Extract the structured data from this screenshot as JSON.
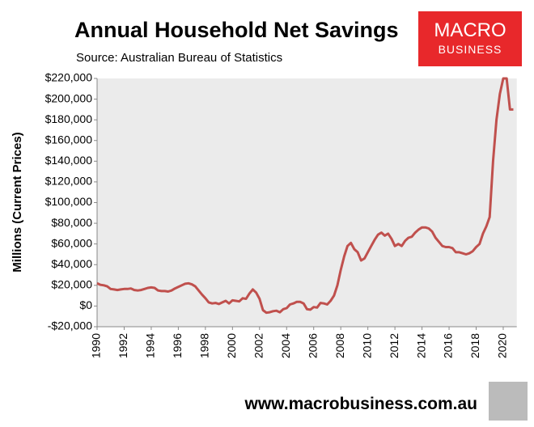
{
  "chart_data": {
    "type": "line",
    "title": "Annual Household Net Savings",
    "subtitle": "Source: Australian Bureau of Statistics",
    "y_label": "Millions (Current Prices)",
    "logo_top": "MACRO",
    "logo_bottom": "BUSINESS",
    "footer": "www.macrobusiness.com.au",
    "xlim": [
      1990,
      2021
    ],
    "xticks": [
      1990,
      1992,
      1994,
      1996,
      1998,
      2000,
      2002,
      2004,
      2006,
      2008,
      2010,
      2012,
      2014,
      2016,
      2018,
      2020
    ],
    "ylim": [
      -20000,
      220000
    ],
    "yticks": [
      {
        "value": -20000,
        "label": "-$20,000"
      },
      {
        "value": 0,
        "label": "$0"
      },
      {
        "value": 20000,
        "label": "$20,000"
      },
      {
        "value": 40000,
        "label": "$40,000"
      },
      {
        "value": 60000,
        "label": "$60,000"
      },
      {
        "value": 80000,
        "label": "$80,000"
      },
      {
        "value": 100000,
        "label": "$100,000"
      },
      {
        "value": 120000,
        "label": "$120,000"
      },
      {
        "value": 140000,
        "label": "$140,000"
      },
      {
        "value": 160000,
        "label": "$160,000"
      },
      {
        "value": 180000,
        "label": "$180,000"
      },
      {
        "value": 200000,
        "label": "$200,000"
      },
      {
        "value": 220000,
        "label": "$220,000"
      }
    ],
    "grid": false,
    "series": [
      {
        "name": "Household Net Savings",
        "color": "#c0504d",
        "x": [
          1990,
          1990.25,
          1990.5,
          1990.75,
          1991,
          1991.25,
          1991.5,
          1991.75,
          1992,
          1992.25,
          1992.5,
          1992.75,
          1993,
          1993.25,
          1993.5,
          1993.75,
          1994,
          1994.25,
          1994.5,
          1994.75,
          1995,
          1995.25,
          1995.5,
          1995.75,
          1996,
          1996.25,
          1996.5,
          1996.75,
          1997,
          1997.25,
          1997.5,
          1997.75,
          1998,
          1998.25,
          1998.5,
          1998.75,
          1999,
          1999.25,
          1999.5,
          1999.75,
          2000,
          2000.25,
          2000.5,
          2000.75,
          2001,
          2001.25,
          2001.5,
          2001.75,
          2002,
          2002.25,
          2002.5,
          2002.75,
          2003,
          2003.25,
          2003.5,
          2003.75,
          2004,
          2004.25,
          2004.5,
          2004.75,
          2005,
          2005.25,
          2005.5,
          2005.75,
          2006,
          2006.25,
          2006.5,
          2006.75,
          2007,
          2007.25,
          2007.5,
          2007.75,
          2008,
          2008.25,
          2008.5,
          2008.75,
          2009,
          2009.25,
          2009.5,
          2009.75,
          2010,
          2010.25,
          2010.5,
          2010.75,
          2011,
          2011.25,
          2011.5,
          2011.75,
          2012,
          2012.25,
          2012.5,
          2012.75,
          2013,
          2013.25,
          2013.5,
          2013.75,
          2014,
          2014.25,
          2014.5,
          2014.75,
          2015,
          2015.25,
          2015.5,
          2015.75,
          2016,
          2016.25,
          2016.5,
          2016.75,
          2017,
          2017.25,
          2017.5,
          2017.75,
          2018,
          2018.25,
          2018.5,
          2018.75,
          2019,
          2019.25,
          2019.5,
          2019.75,
          2020,
          2020.25,
          2020.5,
          2020.75
        ],
        "values": [
          22000,
          20500,
          20000,
          19000,
          16500,
          16000,
          15500,
          16000,
          16500,
          16500,
          17000,
          15500,
          15000,
          15500,
          16500,
          17500,
          18000,
          17500,
          15000,
          14500,
          14500,
          14000,
          15000,
          17000,
          18500,
          20000,
          21500,
          22000,
          21000,
          19000,
          15000,
          11000,
          7500,
          3500,
          2500,
          3000,
          2000,
          3500,
          5000,
          2500,
          5500,
          5000,
          4500,
          7500,
          7000,
          12000,
          16000,
          13000,
          7000,
          -4000,
          -6500,
          -6000,
          -5000,
          -4500,
          -6000,
          -3000,
          -2000,
          1500,
          2500,
          4000,
          4000,
          2500,
          -3000,
          -3500,
          -1000,
          -1500,
          3000,
          2500,
          1500,
          5000,
          10000,
          20000,
          35000,
          48000,
          58000,
          61000,
          55000,
          52000,
          44000,
          46000,
          52000,
          58000,
          64000,
          69000,
          71000,
          68000,
          70000,
          65000,
          58000,
          60000,
          58000,
          63000,
          66000,
          67000,
          71000,
          74000,
          76000,
          76000,
          75000,
          72000,
          66000,
          62000,
          58000,
          57000,
          57000,
          56000,
          52000,
          52000,
          51000,
          50000,
          51000,
          53000,
          57000,
          60000,
          70000,
          77000,
          86000,
          140000,
          180000,
          205000,
          220000,
          220000,
          190000,
          190000
        ]
      }
    ]
  }
}
